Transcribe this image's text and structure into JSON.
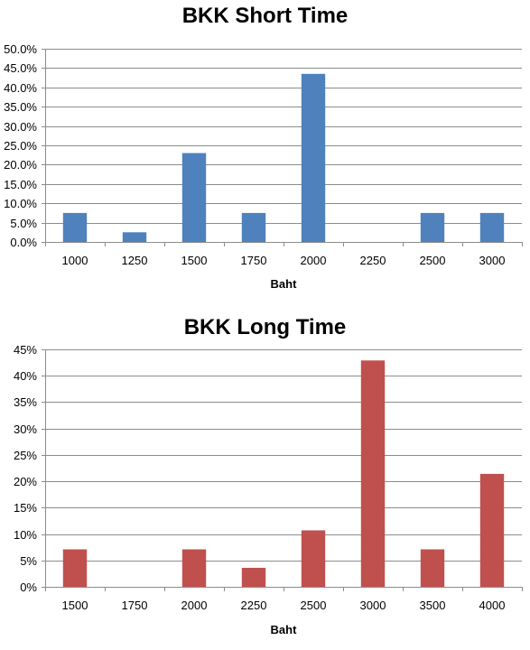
{
  "chart_data": [
    {
      "type": "bar",
      "title": "BKK Short Time",
      "xlabel": "Baht",
      "ylabel": "",
      "categories": [
        "1000",
        "1250",
        "1500",
        "1750",
        "2000",
        "2250",
        "2500",
        "3000"
      ],
      "values": [
        7.5,
        2.5,
        23.0,
        7.5,
        43.5,
        0,
        7.5,
        7.5
      ],
      "ylim": [
        0,
        50
      ],
      "yticks": [
        "0.0%",
        "5.0%",
        "10.0%",
        "15.0%",
        "20.0%",
        "25.0%",
        "30.0%",
        "35.0%",
        "40.0%",
        "45.0%",
        "50.0%"
      ],
      "color": "#4f81bd",
      "grid": true,
      "legend": "none"
    },
    {
      "type": "bar",
      "title": "BKK Long Time",
      "xlabel": "Baht",
      "ylabel": "",
      "categories": [
        "1500",
        "1750",
        "2000",
        "2250",
        "2500",
        "3000",
        "3500",
        "4000"
      ],
      "values": [
        7.1,
        0,
        7.1,
        3.6,
        10.7,
        42.9,
        7.1,
        21.4
      ],
      "ylim": [
        0,
        45
      ],
      "yticks": [
        "0%",
        "5%",
        "10%",
        "15%",
        "20%",
        "25%",
        "30%",
        "35%",
        "40%",
        "45%"
      ],
      "color": "#c0504d",
      "grid": true,
      "legend": "none"
    }
  ]
}
